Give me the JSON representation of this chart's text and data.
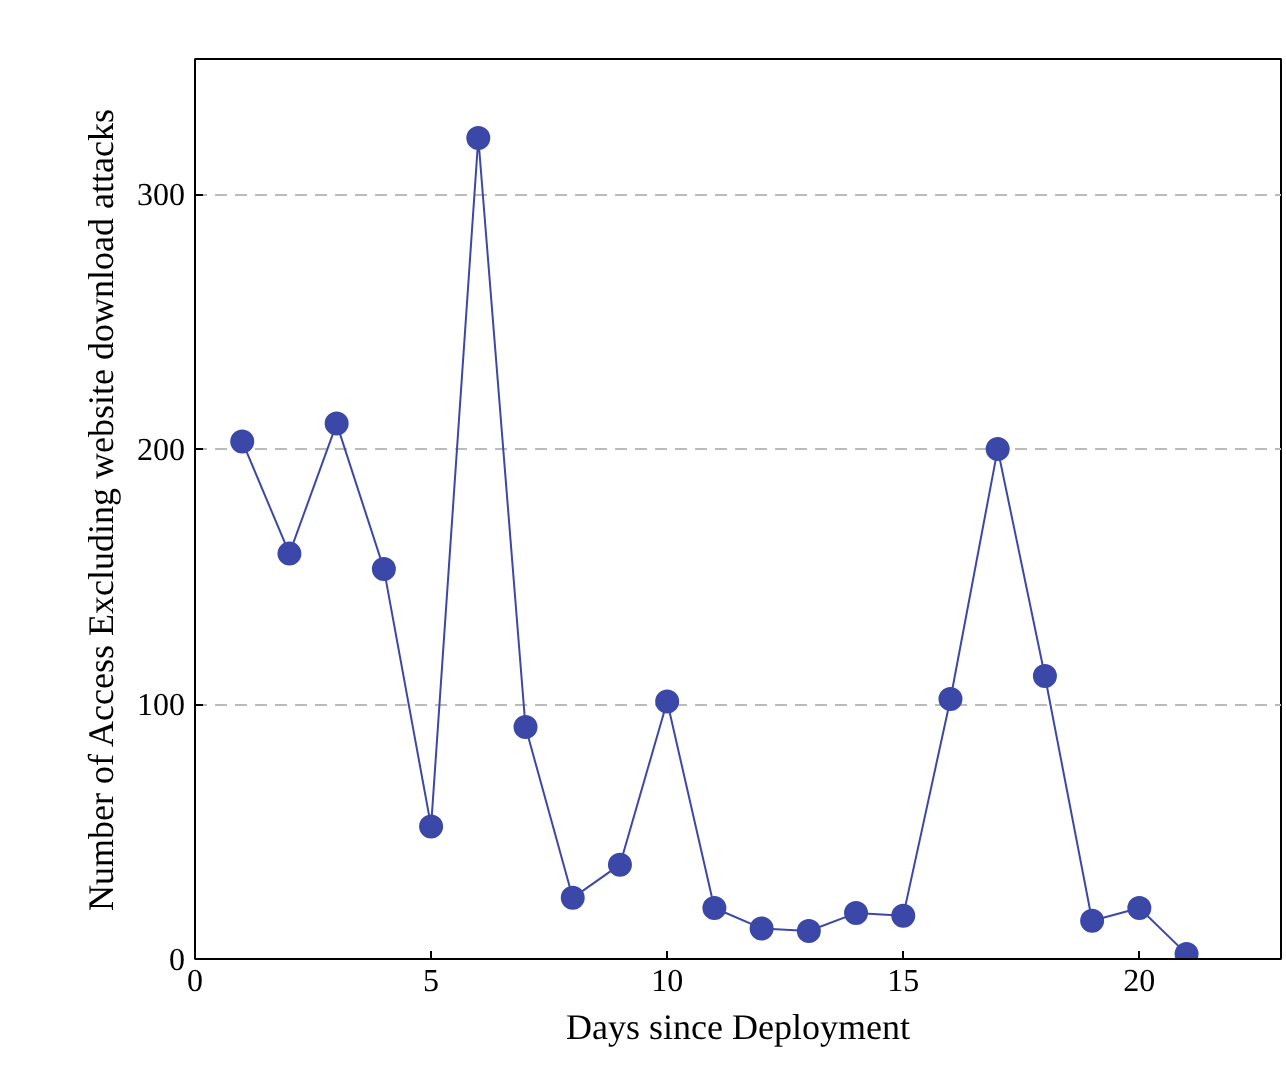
{
  "chart_data": {
    "type": "line",
    "xlabel": "Days since Deployment",
    "ylabel": "Number of Access Excluding website download attacks",
    "x": [
      1,
      2,
      3,
      4,
      5,
      6,
      7,
      8,
      9,
      10,
      11,
      12,
      13,
      14,
      15,
      16,
      17,
      18,
      19,
      20,
      21
    ],
    "series": [
      {
        "color": "#3b48a8",
        "values": [
          203,
          159,
          210,
          153,
          52,
          322,
          91,
          24,
          37,
          101,
          20,
          12,
          11,
          18,
          17,
          102,
          200,
          111,
          15,
          20,
          2
        ]
      }
    ],
    "xlim": [
      0,
      23
    ],
    "ylim": [
      0,
      353
    ],
    "xticks": [
      0,
      5,
      10,
      15,
      20
    ],
    "yticks": [
      0,
      100,
      200,
      300
    ],
    "grid": "y",
    "marker": "circle",
    "line_style": "solid"
  }
}
